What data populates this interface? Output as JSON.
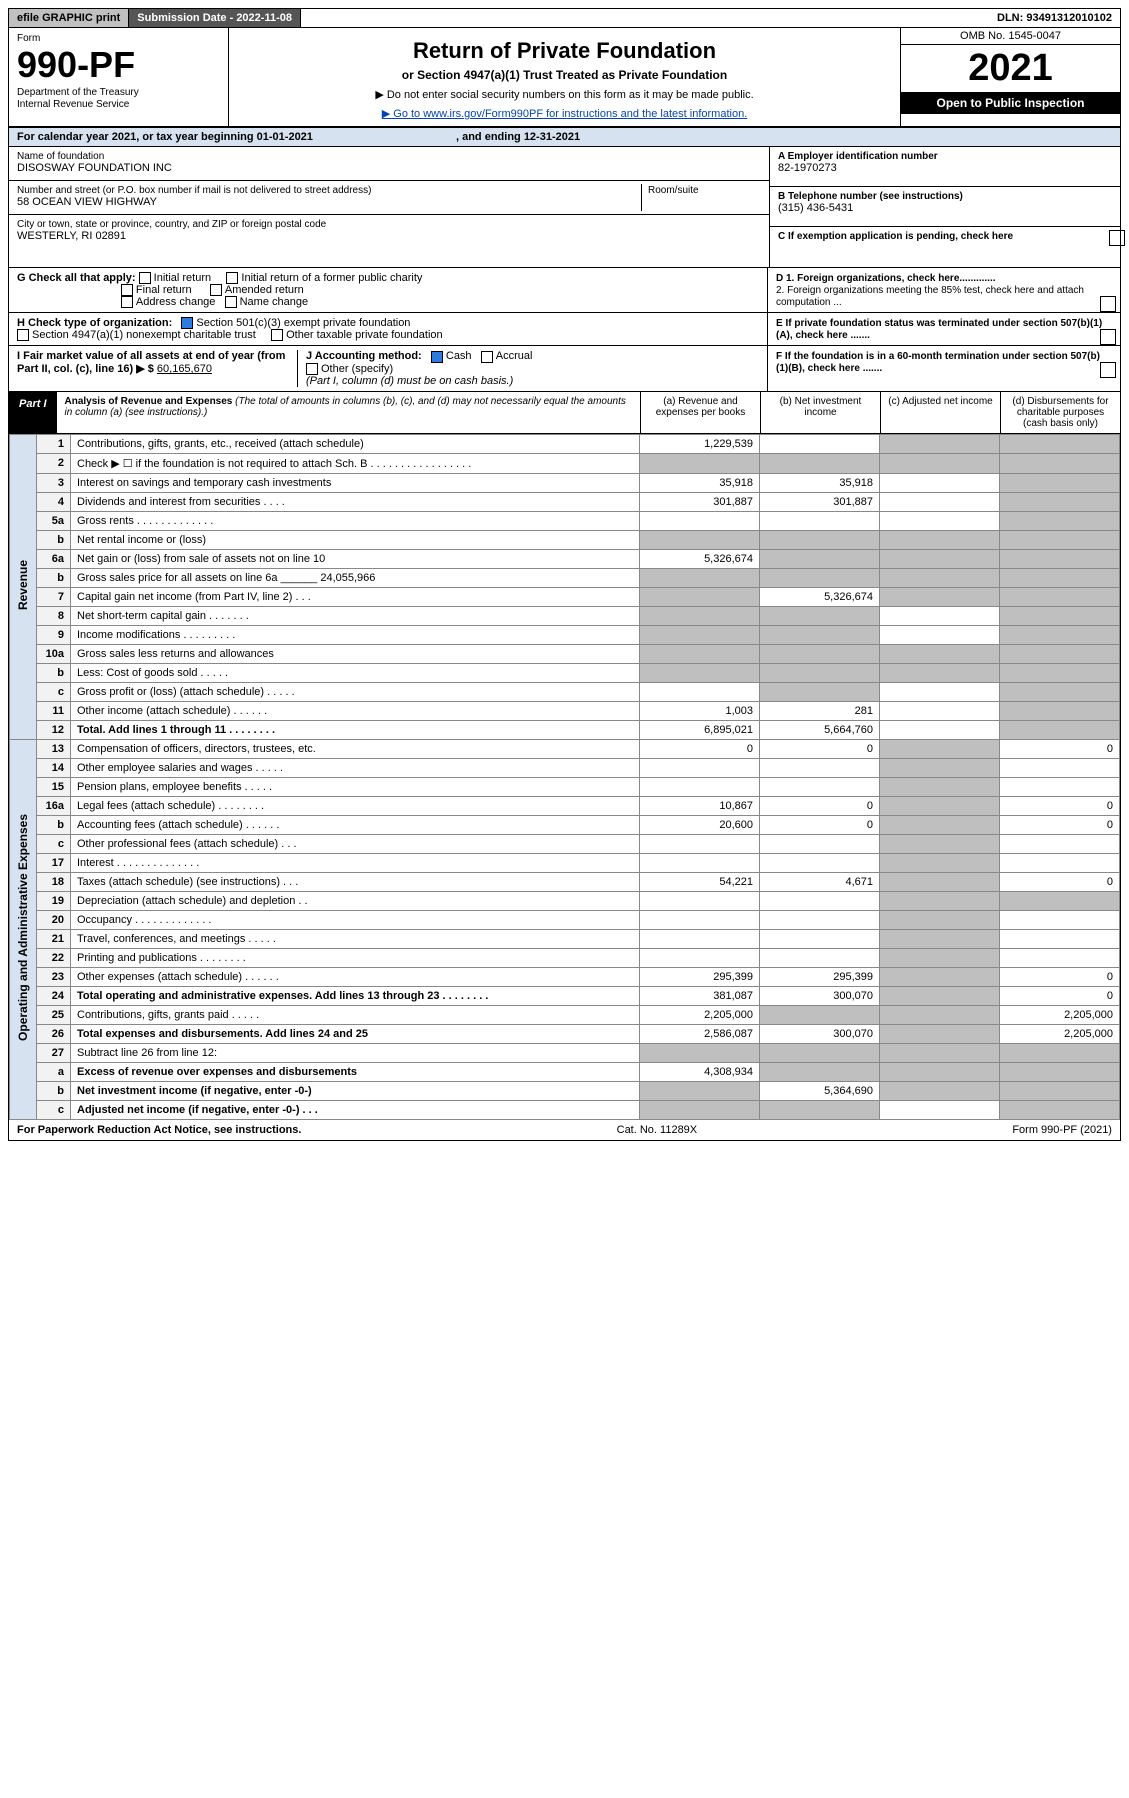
{
  "topbar": {
    "efile": "efile GRAPHIC print",
    "subdate_label": "Submission Date - 2022-11-08",
    "dln": "DLN: 93491312010102"
  },
  "header": {
    "form_label": "Form",
    "form_number": "990-PF",
    "dept": "Department of the Treasury",
    "irs": "Internal Revenue Service",
    "title": "Return of Private Foundation",
    "subtitle": "or Section 4947(a)(1) Trust Treated as Private Foundation",
    "note1": "▶ Do not enter social security numbers on this form as it may be made public.",
    "note2": "▶ Go to www.irs.gov/Form990PF for instructions and the latest information.",
    "omb": "OMB No. 1545-0047",
    "year": "2021",
    "inspection": "Open to Public Inspection"
  },
  "calendar_year": "For calendar year 2021, or tax year beginning 01-01-2021",
  "calendar_year_end": ", and ending 12-31-2021",
  "foundation": {
    "name_label": "Name of foundation",
    "name": "DISOSWAY FOUNDATION INC",
    "street_label": "Number and street (or P.O. box number if mail is not delivered to street address)",
    "street": "58 OCEAN VIEW HIGHWAY",
    "room_label": "Room/suite",
    "city_label": "City or town, state or province, country, and ZIP or foreign postal code",
    "city": "WESTERLY, RI  02891",
    "ein_label": "A Employer identification number",
    "ein": "82-1970273",
    "phone_label": "B Telephone number (see instructions)",
    "phone": "(315) 436-5431",
    "c_label": "C If exemption application is pending, check here"
  },
  "checks": {
    "g_label": "G Check all that apply:",
    "g_opts": [
      "Initial return",
      "Final return",
      "Address change",
      "Initial return of a former public charity",
      "Amended return",
      "Name change"
    ],
    "h_label": "H Check type of organization:",
    "h_opt1": "Section 501(c)(3) exempt private foundation",
    "h_opt2": "Section 4947(a)(1) nonexempt charitable trust",
    "h_opt3": "Other taxable private foundation",
    "i_label": "I Fair market value of all assets at end of year (from Part II, col. (c), line 16) ▶ $",
    "i_value": "60,165,670",
    "j_label": "J Accounting method:",
    "j_opts": [
      "Cash",
      "Accrual",
      "Other (specify)"
    ],
    "j_note": "(Part I, column (d) must be on cash basis.)",
    "d1": "D 1. Foreign organizations, check here.............",
    "d2": "2. Foreign organizations meeting the 85% test, check here and attach computation ...",
    "e": "E  If private foundation status was terminated under section 507(b)(1)(A), check here .......",
    "f": "F  If the foundation is in a 60-month termination under section 507(b)(1)(B), check here .......",
    "h_checked": "501c3",
    "j_checked": "cash"
  },
  "part1": {
    "label": "Part I",
    "title": "Analysis of Revenue and Expenses",
    "desc": "(The total of amounts in columns (b), (c), and (d) may not necessarily equal the amounts in column (a) (see instructions).)",
    "col_a": "(a)  Revenue and expenses per books",
    "col_b": "(b)  Net investment income",
    "col_c": "(c)  Adjusted net income",
    "col_d": "(d)  Disbursements for charitable purposes (cash basis only)"
  },
  "sections": {
    "revenue": "Revenue",
    "expenses": "Operating and Administrative Expenses"
  },
  "rows": [
    {
      "n": "1",
      "d": "Contributions, gifts, grants, etc., received (attach schedule)",
      "a": "1,229,539",
      "b": "",
      "c": "shade",
      "dcol": "shade"
    },
    {
      "n": "2",
      "d": "Check ▶ ☐ if the foundation is not required to attach Sch. B  . . . . . . . . . . . . . . . . .",
      "a": "shade",
      "b": "shade",
      "c": "shade",
      "dcol": "shade"
    },
    {
      "n": "3",
      "d": "Interest on savings and temporary cash investments",
      "a": "35,918",
      "b": "35,918",
      "c": "",
      "dcol": "shade"
    },
    {
      "n": "4",
      "d": "Dividends and interest from securities  . . . .",
      "a": "301,887",
      "b": "301,887",
      "c": "",
      "dcol": "shade"
    },
    {
      "n": "5a",
      "d": "Gross rents  . . . . . . . . . . . . .",
      "a": "",
      "b": "",
      "c": "",
      "dcol": "shade"
    },
    {
      "n": "b",
      "d": "Net rental income or (loss)",
      "a": "shade",
      "b": "shade",
      "c": "shade",
      "dcol": "shade"
    },
    {
      "n": "6a",
      "d": "Net gain or (loss) from sale of assets not on line 10",
      "a": "5,326,674",
      "b": "shade",
      "c": "shade",
      "dcol": "shade"
    },
    {
      "n": "b",
      "d": "Gross sales price for all assets on line 6a ______ 24,055,966",
      "a": "shade",
      "b": "shade",
      "c": "shade",
      "dcol": "shade"
    },
    {
      "n": "7",
      "d": "Capital gain net income (from Part IV, line 2)  . . .",
      "a": "shade",
      "b": "5,326,674",
      "c": "shade",
      "dcol": "shade"
    },
    {
      "n": "8",
      "d": "Net short-term capital gain  . . . . . . .",
      "a": "shade",
      "b": "shade",
      "c": "",
      "dcol": "shade"
    },
    {
      "n": "9",
      "d": "Income modifications  . . . . . . . . .",
      "a": "shade",
      "b": "shade",
      "c": "",
      "dcol": "shade"
    },
    {
      "n": "10a",
      "d": "Gross sales less returns and allowances",
      "a": "shade",
      "b": "shade",
      "c": "shade",
      "dcol": "shade"
    },
    {
      "n": "b",
      "d": "Less: Cost of goods sold  . . . . .",
      "a": "shade",
      "b": "shade",
      "c": "shade",
      "dcol": "shade"
    },
    {
      "n": "c",
      "d": "Gross profit or (loss) (attach schedule)  . . . . .",
      "a": "",
      "b": "shade",
      "c": "",
      "dcol": "shade"
    },
    {
      "n": "11",
      "d": "Other income (attach schedule)  . . . . . .",
      "a": "1,003",
      "b": "281",
      "c": "",
      "dcol": "shade"
    },
    {
      "n": "12",
      "d": "Total. Add lines 1 through 11  . . . . . . . .",
      "a": "6,895,021",
      "b": "5,664,760",
      "c": "",
      "dcol": "shade",
      "bold": true
    }
  ],
  "exp_rows": [
    {
      "n": "13",
      "d": "Compensation of officers, directors, trustees, etc.",
      "a": "0",
      "b": "0",
      "c": "shade",
      "dcol": "0"
    },
    {
      "n": "14",
      "d": "Other employee salaries and wages  . . . . .",
      "a": "",
      "b": "",
      "c": "shade",
      "dcol": ""
    },
    {
      "n": "15",
      "d": "Pension plans, employee benefits  . . . . .",
      "a": "",
      "b": "",
      "c": "shade",
      "dcol": ""
    },
    {
      "n": "16a",
      "d": "Legal fees (attach schedule)  . . . . . . . .",
      "a": "10,867",
      "b": "0",
      "c": "shade",
      "dcol": "0"
    },
    {
      "n": "b",
      "d": "Accounting fees (attach schedule)  . . . . . .",
      "a": "20,600",
      "b": "0",
      "c": "shade",
      "dcol": "0"
    },
    {
      "n": "c",
      "d": "Other professional fees (attach schedule)  . . .",
      "a": "",
      "b": "",
      "c": "shade",
      "dcol": ""
    },
    {
      "n": "17",
      "d": "Interest  . . . . . . . . . . . . . .",
      "a": "",
      "b": "",
      "c": "shade",
      "dcol": ""
    },
    {
      "n": "18",
      "d": "Taxes (attach schedule) (see instructions)  . . .",
      "a": "54,221",
      "b": "4,671",
      "c": "shade",
      "dcol": "0"
    },
    {
      "n": "19",
      "d": "Depreciation (attach schedule) and depletion  . .",
      "a": "",
      "b": "",
      "c": "shade",
      "dcol": "shade"
    },
    {
      "n": "20",
      "d": "Occupancy  . . . . . . . . . . . . .",
      "a": "",
      "b": "",
      "c": "shade",
      "dcol": ""
    },
    {
      "n": "21",
      "d": "Travel, conferences, and meetings  . . . . .",
      "a": "",
      "b": "",
      "c": "shade",
      "dcol": ""
    },
    {
      "n": "22",
      "d": "Printing and publications  . . . . . . . .",
      "a": "",
      "b": "",
      "c": "shade",
      "dcol": ""
    },
    {
      "n": "23",
      "d": "Other expenses (attach schedule)  . . . . . .",
      "a": "295,399",
      "b": "295,399",
      "c": "shade",
      "dcol": "0"
    },
    {
      "n": "24",
      "d": "Total operating and administrative expenses. Add lines 13 through 23  . . . . . . . .",
      "a": "381,087",
      "b": "300,070",
      "c": "shade",
      "dcol": "0",
      "bold": true
    },
    {
      "n": "25",
      "d": "Contributions, gifts, grants paid  . . . . .",
      "a": "2,205,000",
      "b": "shade",
      "c": "shade",
      "dcol": "2,205,000"
    },
    {
      "n": "26",
      "d": "Total expenses and disbursements. Add lines 24 and 25",
      "a": "2,586,087",
      "b": "300,070",
      "c": "shade",
      "dcol": "2,205,000",
      "bold": true
    }
  ],
  "bottom_rows": [
    {
      "n": "27",
      "d": "Subtract line 26 from line 12:",
      "a": "shade",
      "b": "shade",
      "c": "shade",
      "dcol": "shade"
    },
    {
      "n": "a",
      "d": "Excess of revenue over expenses and disbursements",
      "a": "4,308,934",
      "b": "shade",
      "c": "shade",
      "dcol": "shade",
      "bold": true
    },
    {
      "n": "b",
      "d": "Net investment income (if negative, enter -0-)",
      "a": "shade",
      "b": "5,364,690",
      "c": "shade",
      "dcol": "shade",
      "bold": true
    },
    {
      "n": "c",
      "d": "Adjusted net income (if negative, enter -0-)  . . .",
      "a": "shade",
      "b": "shade",
      "c": "",
      "dcol": "shade",
      "bold": true
    }
  ],
  "footer": {
    "left": "For Paperwork Reduction Act Notice, see instructions.",
    "mid": "Cat. No. 11289X",
    "right": "Form 990-PF (2021)"
  },
  "colors": {
    "header_bg": "#d6e2ef",
    "shade": "#bfbfbf",
    "link": "#0645ad",
    "check_on": "#2e7be0"
  }
}
